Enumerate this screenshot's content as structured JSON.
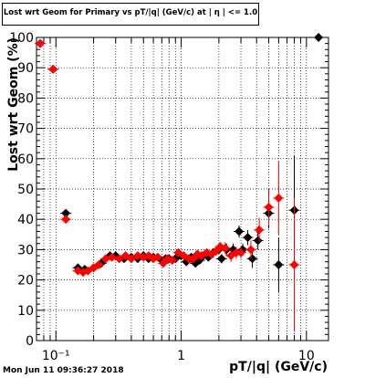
{
  "chart_data": {
    "type": "scatter",
    "title": "Lost wrt Geom for Primary vs pT/|q| (GeV/c) at | η | <= 1.0",
    "xlabel": "pT/|q| (GeV/c)",
    "ylabel": "Lost wrt Geom (%)",
    "xscale": "log",
    "xlim": [
      0.07,
      15
    ],
    "ylim": [
      0,
      100
    ],
    "x_tick_labels": [
      "10⁻¹",
      "1",
      "10"
    ],
    "x_tick_values": [
      0.1,
      1,
      10
    ],
    "y_ticks": [
      0,
      10,
      20,
      30,
      40,
      50,
      60,
      70,
      80,
      90,
      100
    ],
    "grid": true,
    "series": [
      {
        "color": "#000000",
        "points": [
          {
            "x": 0.075,
            "y": 98,
            "err": 0
          },
          {
            "x": 0.095,
            "y": 89.5,
            "err": 0
          },
          {
            "x": 0.12,
            "y": 42,
            "err": 0
          },
          {
            "x": 0.15,
            "y": 24,
            "err": 0
          },
          {
            "x": 0.17,
            "y": 23.5,
            "err": 0
          },
          {
            "x": 0.2,
            "y": 24,
            "err": 0
          },
          {
            "x": 0.23,
            "y": 25.5,
            "err": 0
          },
          {
            "x": 0.27,
            "y": 28,
            "err": 0
          },
          {
            "x": 0.3,
            "y": 28,
            "err": 0
          },
          {
            "x": 0.35,
            "y": 27,
            "err": 0
          },
          {
            "x": 0.4,
            "y": 27.5,
            "err": 0
          },
          {
            "x": 0.45,
            "y": 27,
            "err": 0
          },
          {
            "x": 0.5,
            "y": 28,
            "err": 0
          },
          {
            "x": 0.55,
            "y": 27,
            "err": 0
          },
          {
            "x": 0.6,
            "y": 27.5,
            "err": 0
          },
          {
            "x": 0.7,
            "y": 26.5,
            "err": 0
          },
          {
            "x": 0.75,
            "y": 27,
            "err": 1
          },
          {
            "x": 0.8,
            "y": 27,
            "err": 1
          },
          {
            "x": 0.9,
            "y": 27,
            "err": 1
          },
          {
            "x": 1.0,
            "y": 28,
            "err": 1
          },
          {
            "x": 1.1,
            "y": 26,
            "err": 1
          },
          {
            "x": 1.2,
            "y": 27.5,
            "err": 1
          },
          {
            "x": 1.3,
            "y": 25.5,
            "err": 1
          },
          {
            "x": 1.4,
            "y": 26.5,
            "err": 1
          },
          {
            "x": 1.5,
            "y": 28,
            "err": 1
          },
          {
            "x": 1.65,
            "y": 27.5,
            "err": 1
          },
          {
            "x": 1.8,
            "y": 29,
            "err": 1.5
          },
          {
            "x": 2.0,
            "y": 30,
            "err": 1.5
          },
          {
            "x": 2.1,
            "y": 27,
            "err": 1.5
          },
          {
            "x": 2.3,
            "y": 30,
            "err": 2
          },
          {
            "x": 2.6,
            "y": 30,
            "err": 2
          },
          {
            "x": 2.9,
            "y": 36,
            "err": 2
          },
          {
            "x": 3.1,
            "y": 30,
            "err": 2
          },
          {
            "x": 3.4,
            "y": 34,
            "err": 2.5
          },
          {
            "x": 3.7,
            "y": 27,
            "err": 3
          },
          {
            "x": 4.1,
            "y": 33,
            "err": 3
          },
          {
            "x": 5.0,
            "y": 42,
            "err": 5
          },
          {
            "x": 6.0,
            "y": 25,
            "err": 9
          },
          {
            "x": 8.0,
            "y": 43,
            "err": 18
          },
          {
            "x": 12.5,
            "y": 100,
            "err": 0
          }
        ]
      },
      {
        "color": "#ff0000",
        "points": [
          {
            "x": 0.075,
            "y": 98,
            "err": 0
          },
          {
            "x": 0.095,
            "y": 89.5,
            "err": 0
          },
          {
            "x": 0.12,
            "y": 40,
            "err": 0
          },
          {
            "x": 0.15,
            "y": 23,
            "err": 0
          },
          {
            "x": 0.165,
            "y": 22.5,
            "err": 0
          },
          {
            "x": 0.18,
            "y": 23,
            "err": 0
          },
          {
            "x": 0.2,
            "y": 24,
            "err": 0
          },
          {
            "x": 0.22,
            "y": 25,
            "err": 0
          },
          {
            "x": 0.25,
            "y": 27,
            "err": 0
          },
          {
            "x": 0.28,
            "y": 27.5,
            "err": 0
          },
          {
            "x": 0.32,
            "y": 27,
            "err": 0
          },
          {
            "x": 0.36,
            "y": 28,
            "err": 0
          },
          {
            "x": 0.4,
            "y": 27,
            "err": 0
          },
          {
            "x": 0.45,
            "y": 28,
            "err": 0
          },
          {
            "x": 0.5,
            "y": 27.5,
            "err": 0
          },
          {
            "x": 0.55,
            "y": 28,
            "err": 0
          },
          {
            "x": 0.6,
            "y": 27,
            "err": 0
          },
          {
            "x": 0.65,
            "y": 27.5,
            "err": 0
          },
          {
            "x": 0.72,
            "y": 25.5,
            "err": 1
          },
          {
            "x": 0.78,
            "y": 27,
            "err": 1
          },
          {
            "x": 0.85,
            "y": 26.5,
            "err": 1
          },
          {
            "x": 0.95,
            "y": 29,
            "err": 1
          },
          {
            "x": 1.05,
            "y": 28,
            "err": 1
          },
          {
            "x": 1.15,
            "y": 27,
            "err": 1
          },
          {
            "x": 1.25,
            "y": 27,
            "err": 1
          },
          {
            "x": 1.35,
            "y": 28.5,
            "err": 1
          },
          {
            "x": 1.45,
            "y": 28,
            "err": 1
          },
          {
            "x": 1.6,
            "y": 29,
            "err": 1
          },
          {
            "x": 1.75,
            "y": 28.5,
            "err": 1.5
          },
          {
            "x": 1.9,
            "y": 29.5,
            "err": 1.5
          },
          {
            "x": 2.05,
            "y": 31,
            "err": 1.5
          },
          {
            "x": 2.25,
            "y": 30.5,
            "err": 2
          },
          {
            "x": 2.5,
            "y": 28,
            "err": 2
          },
          {
            "x": 2.75,
            "y": 29,
            "err": 2
          },
          {
            "x": 3.0,
            "y": 29,
            "err": 2
          },
          {
            "x": 3.6,
            "y": 30,
            "err": 3
          },
          {
            "x": 4.2,
            "y": 36.5,
            "err": 4
          },
          {
            "x": 5.0,
            "y": 44,
            "err": 6
          },
          {
            "x": 6.0,
            "y": 47,
            "err": 12
          },
          {
            "x": 8.0,
            "y": 25,
            "err": 22
          }
        ]
      }
    ]
  },
  "timestamp": "Mon Jun 11 09:36:27 2018"
}
